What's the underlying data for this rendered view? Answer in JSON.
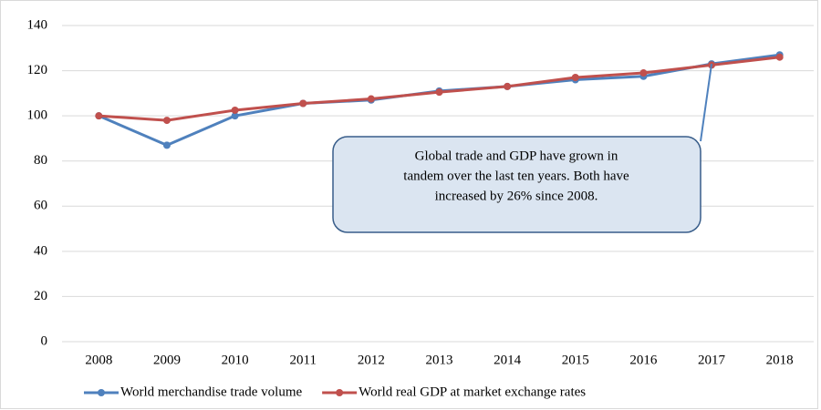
{
  "chart_data": {
    "type": "line",
    "categories": [
      "2008",
      "2009",
      "2010",
      "2011",
      "2012",
      "2013",
      "2014",
      "2015",
      "2016",
      "2017",
      "2018"
    ],
    "series": [
      {
        "name": "World merchandise trade volume",
        "color": "#4f81bd",
        "values": [
          100,
          87,
          100,
          105.5,
          107,
          111,
          113,
          116,
          117.5,
          123,
          127
        ]
      },
      {
        "name": "World real GDP at market exchange rates",
        "color": "#c0504d",
        "values": [
          100,
          98,
          102.5,
          105.5,
          107.5,
          110.5,
          113,
          117,
          119,
          122.5,
          126
        ]
      }
    ],
    "ylim": [
      0,
      140
    ],
    "yticks": [
      0,
      20,
      40,
      60,
      80,
      100,
      120,
      140
    ],
    "grid": true,
    "legend": "bottom",
    "annotation": [
      "Global trade and GDP have grown in",
      "tandem over the last ten years. Both have",
      "increased by 26% since 2008."
    ]
  }
}
